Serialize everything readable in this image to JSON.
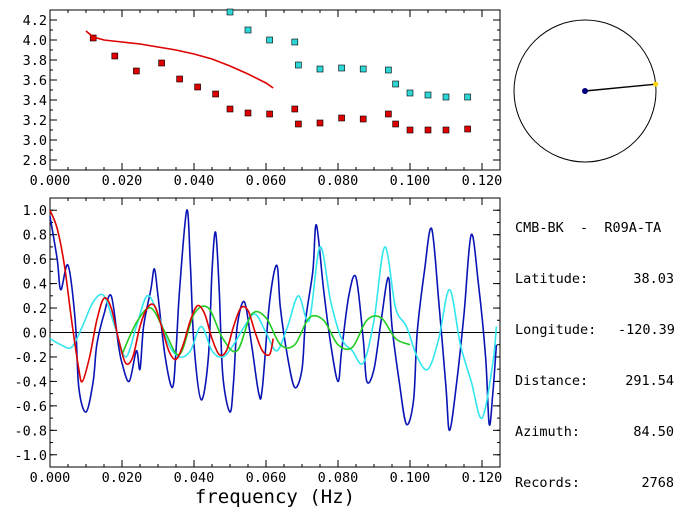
{
  "station": {
    "title": "CMB-BK  -  R09A-TA",
    "rows": [
      {
        "label": "Latitude:",
        "value": "38.03"
      },
      {
        "label": "Longitude:",
        "value": "-120.39"
      },
      {
        "label": "Distance:",
        "value": "291.54"
      },
      {
        "label": "Azimuth:",
        "value": "84.50"
      },
      {
        "label": "Records:",
        "value": "2768"
      }
    ]
  },
  "colors": {
    "red": "#dd0000",
    "cyan": "#2fd6d6",
    "dark_blue": "#0a14b4",
    "light_cyan": "#33e6ee",
    "green": "#22cc22",
    "compass_dot": "#000080",
    "compass_tip": "#ffd700"
  },
  "chart_data": [
    {
      "type": "scatter",
      "xlim": [
        0.0,
        0.125
      ],
      "ylim": [
        2.7,
        4.3
      ],
      "x_ticks": [
        "0.000",
        "0.020",
        "0.040",
        "0.060",
        "0.080",
        "0.100",
        "0.120"
      ],
      "y_ticks": [
        "2.8",
        "3.0",
        "3.2",
        "3.4",
        "3.6",
        "3.8",
        "4.0",
        "4.2"
      ],
      "series": [
        {
          "marker": "square",
          "color": "red",
          "x": [
            0.012,
            0.018,
            0.024,
            0.031,
            0.036,
            0.041,
            0.046,
            0.05,
            0.055,
            0.061,
            0.068,
            0.069,
            0.075,
            0.081,
            0.087,
            0.094,
            0.096,
            0.1,
            0.105,
            0.11,
            0.116
          ],
          "y": [
            4.02,
            3.84,
            3.69,
            3.77,
            3.61,
            3.53,
            3.46,
            3.31,
            3.27,
            3.26,
            3.31,
            3.16,
            3.17,
            3.22,
            3.21,
            3.26,
            3.16,
            3.1,
            3.1,
            3.1,
            3.11
          ]
        },
        {
          "marker": "square",
          "color": "cyan",
          "x": [
            0.05,
            0.055,
            0.061,
            0.068,
            0.069,
            0.075,
            0.081,
            0.087,
            0.094,
            0.096,
            0.1,
            0.105,
            0.11,
            0.116
          ],
          "y": [
            4.28,
            4.1,
            4.0,
            3.98,
            3.75,
            3.71,
            3.72,
            3.71,
            3.7,
            3.56,
            3.47,
            3.45,
            3.43,
            3.43
          ]
        },
        {
          "marker": "line",
          "color": "red",
          "x": [
            0.01,
            0.012,
            0.015,
            0.02,
            0.025,
            0.03,
            0.035,
            0.04,
            0.045,
            0.05,
            0.055,
            0.06,
            0.062
          ],
          "y": [
            4.09,
            4.03,
            4.0,
            3.98,
            3.96,
            3.93,
            3.9,
            3.86,
            3.81,
            3.74,
            3.66,
            3.57,
            3.52
          ]
        }
      ]
    },
    {
      "type": "line",
      "xlim": [
        0.0,
        0.125
      ],
      "ylim": [
        -1.1,
        1.1
      ],
      "xlabel": "frequency (Hz)",
      "x_ticks": [
        "0.000",
        "0.020",
        "0.040",
        "0.060",
        "0.080",
        "0.100",
        "0.120"
      ],
      "y_ticks": [
        "-1.0",
        "-0.8",
        "-0.6",
        "-0.4",
        "-0.2",
        "0.0",
        "0.2",
        "0.4",
        "0.6",
        "0.8",
        "1.0"
      ],
      "series": [
        {
          "color": "dark_blue",
          "x": [
            0.0,
            0.002,
            0.003,
            0.005,
            0.007,
            0.008,
            0.01,
            0.012,
            0.013,
            0.015,
            0.017,
            0.019,
            0.02,
            0.022,
            0.024,
            0.025,
            0.026,
            0.028,
            0.029,
            0.03,
            0.032,
            0.034,
            0.035,
            0.036,
            0.038,
            0.039,
            0.04,
            0.042,
            0.044,
            0.045,
            0.046,
            0.047,
            0.048,
            0.05,
            0.051,
            0.052,
            0.054,
            0.056,
            0.058,
            0.059,
            0.061,
            0.063,
            0.064,
            0.066,
            0.068,
            0.07,
            0.071,
            0.073,
            0.074,
            0.076,
            0.078,
            0.08,
            0.081,
            0.083,
            0.085,
            0.087,
            0.088,
            0.09,
            0.092,
            0.094,
            0.095,
            0.097,
            0.099,
            0.101,
            0.102,
            0.104,
            0.106,
            0.108,
            0.11,
            0.111,
            0.113,
            0.115,
            0.117,
            0.119,
            0.121,
            0.122,
            0.123,
            0.124
          ],
          "y": [
            0.95,
            0.6,
            0.35,
            0.55,
            0.1,
            -0.45,
            -0.65,
            -0.4,
            -0.1,
            0.15,
            0.3,
            -0.1,
            -0.25,
            -0.4,
            -0.15,
            -0.3,
            0.05,
            0.35,
            0.52,
            0.3,
            -0.2,
            -0.45,
            -0.15,
            0.35,
            1.0,
            0.55,
            -0.1,
            -0.55,
            -0.2,
            0.5,
            0.82,
            0.35,
            -0.35,
            -0.65,
            -0.4,
            0.05,
            0.25,
            -0.1,
            -0.5,
            -0.45,
            0.25,
            0.55,
            0.2,
            -0.2,
            -0.45,
            -0.3,
            0.1,
            0.5,
            0.88,
            0.35,
            -0.1,
            -0.4,
            -0.15,
            0.3,
            0.45,
            -0.05,
            -0.4,
            -0.3,
            0.1,
            0.45,
            0.05,
            -0.4,
            -0.75,
            -0.55,
            0.0,
            0.5,
            0.85,
            0.25,
            -0.45,
            -0.8,
            -0.4,
            0.15,
            0.8,
            0.4,
            -0.2,
            -0.75,
            -0.5,
            -0.1
          ]
        },
        {
          "color": "light_cyan",
          "x": [
            0.0,
            0.003,
            0.006,
            0.009,
            0.012,
            0.015,
            0.018,
            0.021,
            0.024,
            0.027,
            0.03,
            0.033,
            0.036,
            0.039,
            0.042,
            0.045,
            0.048,
            0.051,
            0.054,
            0.057,
            0.06,
            0.063,
            0.066,
            0.069,
            0.072,
            0.075,
            0.078,
            0.081,
            0.084,
            0.087,
            0.09,
            0.093,
            0.096,
            0.099,
            0.102,
            0.105,
            0.108,
            0.111,
            0.114,
            0.117,
            0.12,
            0.123,
            0.124
          ],
          "y": [
            -0.05,
            -0.1,
            -0.12,
            0.05,
            0.25,
            0.3,
            0.05,
            -0.2,
            0.05,
            0.3,
            0.15,
            -0.1,
            -0.2,
            -0.15,
            0.05,
            -0.15,
            -0.2,
            -0.1,
            0.05,
            0.15,
            0.0,
            -0.15,
            0.05,
            0.3,
            0.1,
            0.7,
            0.25,
            -0.05,
            -0.15,
            -0.25,
            0.1,
            0.7,
            0.2,
            0.05,
            -0.2,
            -0.3,
            -0.05,
            0.35,
            -0.1,
            -0.4,
            -0.7,
            -0.25,
            0.05
          ]
        },
        {
          "color": "green",
          "x": [
            0.02,
            0.024,
            0.028,
            0.032,
            0.036,
            0.04,
            0.044,
            0.048,
            0.052,
            0.056,
            0.06,
            0.064,
            0.068,
            0.072,
            0.076,
            0.08,
            0.084,
            0.088,
            0.092,
            0.096,
            0.1
          ],
          "y": [
            -0.18,
            0.08,
            0.2,
            0.0,
            -0.18,
            0.15,
            0.2,
            -0.05,
            -0.15,
            0.15,
            0.12,
            -0.1,
            -0.1,
            0.12,
            0.1,
            -0.1,
            -0.12,
            0.1,
            0.12,
            -0.05,
            -0.1
          ]
        },
        {
          "color": "red",
          "x": [
            0.0,
            0.002,
            0.004,
            0.006,
            0.008,
            0.009,
            0.011,
            0.013,
            0.015,
            0.017,
            0.019,
            0.021,
            0.023,
            0.025,
            0.027,
            0.029,
            0.031,
            0.033,
            0.035,
            0.037,
            0.039,
            0.041,
            0.043,
            0.045,
            0.047,
            0.049,
            0.051,
            0.053,
            0.055,
            0.057,
            0.059,
            0.061,
            0.062
          ],
          "y": [
            1.0,
            0.85,
            0.55,
            0.1,
            -0.3,
            -0.4,
            -0.2,
            0.1,
            0.28,
            0.2,
            -0.05,
            -0.25,
            -0.2,
            0.05,
            0.2,
            0.22,
            0.05,
            -0.15,
            -0.22,
            -0.1,
            0.1,
            0.22,
            0.15,
            -0.05,
            -0.18,
            -0.15,
            0.05,
            0.2,
            0.18,
            0.0,
            -0.15,
            -0.18,
            -0.05
          ]
        }
      ]
    }
  ]
}
